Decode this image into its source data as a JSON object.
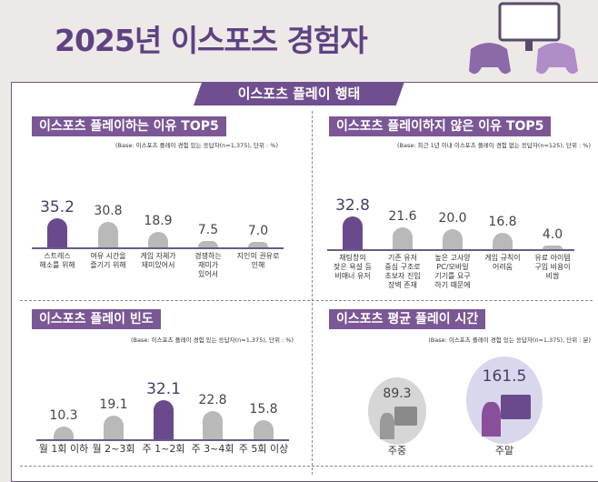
{
  "header": {
    "title": "2025년 이스포츠 경험자",
    "section": "이스포츠 플레이 행태"
  },
  "colors": {
    "highlight": "#6a4a8c",
    "bar": "#b9b9b9",
    "title_bg": "#7b5796"
  },
  "chart_data": [
    {
      "type": "bar",
      "title": "이스포츠 플레이하는 이유 TOP5",
      "note": "(Base: 이스포츠 플레이 경험 있는 응답자(n=1,375), 단위 : %)",
      "categories": [
        "스트레스\n해소를 위해",
        "여유 시간을\n즐기기 위해",
        "게임 자체가\n재미있어서",
        "경쟁하는\n재미가\n있어서",
        "지인의 권유로\n인해"
      ],
      "values": [
        35.2,
        30.8,
        18.9,
        7.5,
        7.0
      ],
      "highlight": 0
    },
    {
      "type": "bar",
      "title": "이스포츠 플레이하지 않은 이유 TOP5",
      "note": "(Base: 최근 1년 이내 이스포츠 플레이 경험 없는 응답자(n=125), 단위 : %)",
      "categories": [
        "채팅창의\n잦은 욕설 등\n비매너 유저",
        "기존 유저\n중심 구조로\n초보자 진입\n장벽 존재",
        "높은 고사양\nPC/모바일\n기기를 요구\n하기 때문에",
        "게임 규칙이\n어려움",
        "유료 아이템\n구입 비용이\n비쌈"
      ],
      "values": [
        32.8,
        21.6,
        20.0,
        16.8,
        4.0
      ],
      "highlight": 0
    },
    {
      "type": "bar",
      "title": "이스포츠 플레이 빈도",
      "note": "(Base: 이스포츠 플레이 경험 있는 응답자(n=1,375), 단위 : %)",
      "categories": [
        "월 1회 이하",
        "월 2~3회",
        "주 1~2회",
        "주 3~4회",
        "주 5회 이상"
      ],
      "values": [
        10.3,
        19.1,
        32.1,
        22.8,
        15.8
      ],
      "highlight": 2
    },
    {
      "type": "bubble",
      "title": "이스포츠 평균 플레이 시간",
      "note": "(Base: 이스포츠 플레이 경험 있는 응답자(n=1,375), 단위 : 분)",
      "categories": [
        "주중",
        "주말"
      ],
      "values": [
        89.3,
        161.5
      ]
    }
  ]
}
